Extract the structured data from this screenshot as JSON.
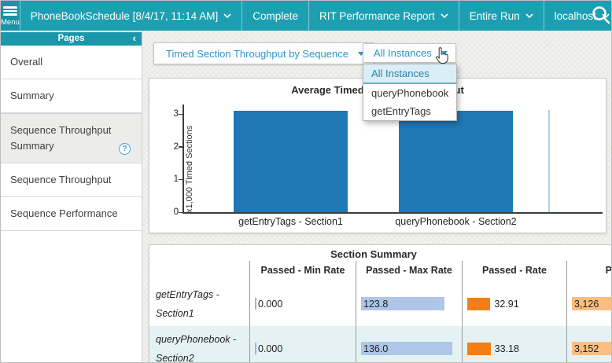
{
  "topbar": {
    "menu_label": "Menu",
    "items": [
      {
        "label": "PhoneBookSchedule [8/4/17, 11:14 AM]",
        "chevron": true
      },
      {
        "label": "Complete",
        "chevron": false
      },
      {
        "label": "RIT Performance Report",
        "chevron": true
      },
      {
        "label": "Entire Run",
        "chevron": true
      },
      {
        "label": "localhost",
        "chevron": true
      }
    ],
    "search_icon": "search-icon"
  },
  "sidebar": {
    "header": "Pages",
    "collapse_icon": "chevron-left-icon",
    "items": [
      {
        "label": "Overall",
        "selected": false,
        "help": false
      },
      {
        "label": "Summary",
        "selected": false,
        "help": false
      },
      {
        "label": "Sequence Throughput Summary",
        "selected": true,
        "help": true
      },
      {
        "label": "Sequence Throughput",
        "selected": false,
        "help": false
      },
      {
        "label": "Sequence Performance",
        "selected": false,
        "help": false
      }
    ]
  },
  "toolbar": {
    "report_select": "Timed Section Throughput by Sequence",
    "instance_select": "All Instances",
    "instance_menu": [
      "All Instances",
      "queryPhonebook",
      "getEntryTags"
    ],
    "instance_menu_selected": 0
  },
  "chart_data": {
    "type": "bar",
    "title": "Average Timed Section Throughput",
    "categories": [
      "getEntryTags - Section1",
      "queryPhonebook - Section2"
    ],
    "values": [
      3.1,
      3.1
    ],
    "xlabel": "",
    "ylabel": "x1,000 Timed Sections",
    "yticks": [
      0,
      1,
      2,
      3
    ],
    "ylim": [
      0,
      3.3
    ],
    "bar_color": "#1f77b4",
    "grid": false,
    "legend": "none"
  },
  "table": {
    "title": "Section Summary",
    "columns": [
      "",
      "Passed - Min Rate",
      "Passed - Max Rate",
      "Passed - Rate",
      "Passed - Total"
    ],
    "bar_scales": {
      "max_rate": 150,
      "rate": 140,
      "total": 3500
    },
    "rows": [
      {
        "label": "getEntryTags - Section1",
        "min_rate": "0.000",
        "min_rate_val": 0,
        "max_rate": "123.8",
        "max_rate_val": 123.8,
        "rate": "32.91",
        "rate_val": 32.91,
        "total": "3,126",
        "total_val": 3126,
        "highlight": false
      },
      {
        "label": "queryPhonebook - Section2",
        "min_rate": "0.000",
        "min_rate_val": 0,
        "max_rate": "136.0",
        "max_rate_val": 136.0,
        "rate": "33.18",
        "rate_val": 33.18,
        "total": "3,152",
        "total_val": 3152,
        "highlight": true
      }
    ]
  },
  "colors": {
    "topbar": "#1d9fb2",
    "accent_link": "#2e96c8",
    "bar_blue": "#1f77b4",
    "bar_light_blue": "#aec6e8",
    "bar_orange": "#f47d16",
    "bar_light_orange": "#fbbe80",
    "row_highlight": "#e4f2f3"
  }
}
